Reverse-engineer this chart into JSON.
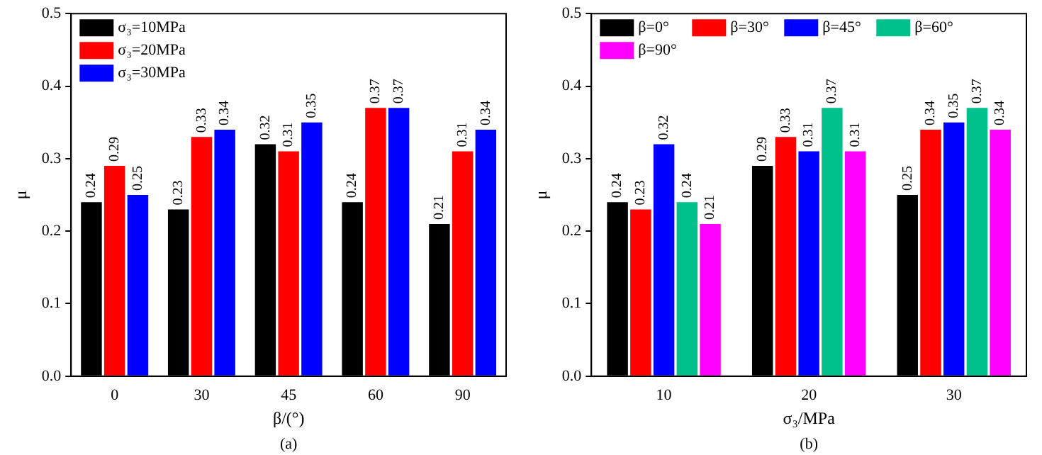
{
  "chart_data": [
    {
      "type": "bar",
      "categories": [
        "0",
        "30",
        "45",
        "60",
        "90"
      ],
      "xlabel": "β/(°)",
      "ylabel": "μ",
      "ylim": [
        0,
        0.5
      ],
      "yticks": [
        {
          "value": 0,
          "label": "0.0"
        },
        {
          "value": 0.1,
          "label": "0.1"
        },
        {
          "value": 0.2,
          "label": "0.2"
        },
        {
          "value": 0.3,
          "label": "0.3"
        },
        {
          "value": 0.4,
          "label": "0.4"
        },
        {
          "value": 0.5,
          "label": "0.5"
        }
      ],
      "grid": false,
      "legend": "top left",
      "data_labels": true,
      "annotations": [
        "(a)"
      ],
      "series": [
        {
          "name": "σ₃=10MPa",
          "color": "#000000",
          "values": [
            0.24,
            0.23,
            0.32,
            0.24,
            0.21
          ]
        },
        {
          "name": "σ₃=20MPa",
          "color": "#ff0000",
          "values": [
            0.29,
            0.33,
            0.31,
            0.37,
            0.31
          ]
        },
        {
          "name": "σ₃=30MPa",
          "color": "#0000ff",
          "values": [
            0.25,
            0.34,
            0.35,
            0.37,
            0.34
          ]
        }
      ]
    },
    {
      "type": "bar",
      "categories": [
        "10",
        "20",
        "30"
      ],
      "xlabel": "σ₃/MPa",
      "ylabel": "μ",
      "ylim": [
        0,
        0.5
      ],
      "yticks": [
        {
          "value": 0,
          "label": "0.0"
        },
        {
          "value": 0.1,
          "label": "0.1"
        },
        {
          "value": 0.2,
          "label": "0.2"
        },
        {
          "value": 0.3,
          "label": "0.3"
        },
        {
          "value": 0.4,
          "label": "0.4"
        },
        {
          "value": 0.5,
          "label": "0.5"
        }
      ],
      "grid": false,
      "legend": "top left",
      "data_labels": true,
      "annotations": [
        "(b)"
      ],
      "series": [
        {
          "name": "β=0°",
          "color": "#000000",
          "values": [
            0.24,
            0.29,
            0.25
          ]
        },
        {
          "name": "β=30°",
          "color": "#ff0000",
          "values": [
            0.23,
            0.33,
            0.34
          ]
        },
        {
          "name": "β=45°",
          "color": "#0000ff",
          "values": [
            0.32,
            0.31,
            0.35
          ]
        },
        {
          "name": "β=60°",
          "color": "#00c08b",
          "values": [
            0.24,
            0.37,
            0.37
          ]
        },
        {
          "name": "β=90°",
          "color": "#ff00ff",
          "values": [
            0.21,
            0.31,
            0.34
          ]
        }
      ]
    }
  ]
}
